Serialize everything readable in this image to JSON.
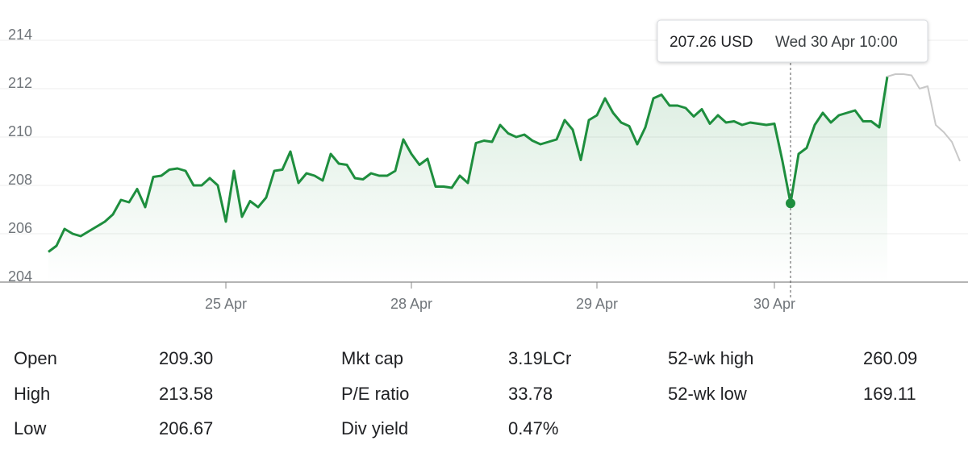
{
  "chart_data": {
    "type": "line",
    "categories": [
      null,
      null,
      null,
      null,
      null,
      null,
      null,
      null,
      null,
      null,
      null,
      null,
      null,
      null,
      null,
      null,
      null,
      null,
      null,
      null,
      null,
      null,
      "25 Apr",
      null,
      null,
      null,
      null,
      null,
      null,
      null,
      null,
      null,
      null,
      null,
      null,
      null,
      null,
      null,
      null,
      null,
      null,
      null,
      null,
      null,
      null,
      "28 Apr",
      null,
      null,
      null,
      null,
      null,
      null,
      null,
      null,
      null,
      null,
      null,
      null,
      null,
      null,
      null,
      null,
      null,
      null,
      null,
      null,
      null,
      null,
      "29 Apr",
      null,
      null,
      null,
      null,
      null,
      null,
      null,
      null,
      null,
      null,
      null,
      null,
      null,
      null,
      null,
      null,
      null,
      null,
      null,
      null,
      null,
      "30 Apr",
      null,
      null,
      null,
      null,
      null,
      null,
      null,
      null,
      null,
      null,
      null,
      null,
      null,
      null,
      null,
      null,
      null,
      null,
      null,
      null,
      null,
      null,
      null
    ],
    "series": [
      {
        "color": "#1e8e3e",
        "values": [
          205.25,
          205.5,
          206.2,
          206.0,
          205.9,
          206.1,
          206.3,
          206.5,
          206.8,
          207.4,
          207.3,
          207.85,
          207.1,
          208.35,
          208.4,
          208.65,
          208.7,
          208.6,
          208.0,
          208.0,
          208.3,
          208.0,
          206.5,
          208.6,
          206.7,
          207.35,
          207.1,
          207.5,
          208.6,
          208.65,
          209.4,
          208.1,
          208.5,
          208.4,
          208.2,
          209.3,
          208.9,
          208.85,
          208.3,
          208.25,
          208.5,
          208.4,
          208.4,
          208.6,
          209.9,
          209.3,
          208.85,
          209.1,
          207.95,
          207.95,
          207.9,
          208.4,
          208.1,
          209.75,
          209.85,
          209.8,
          210.5,
          210.15,
          210.0,
          210.1,
          209.85,
          209.7,
          209.8,
          209.9,
          210.7,
          210.3,
          209.05,
          210.7,
          210.9,
          211.6,
          211.0,
          210.6,
          210.45,
          209.7,
          210.4,
          211.6,
          211.75,
          211.3,
          211.3,
          211.2,
          210.85,
          211.15,
          210.55,
          210.9,
          210.6,
          210.65,
          210.5,
          210.6,
          210.55,
          210.5,
          210.55,
          209.0,
          207.26,
          209.3,
          209.55,
          210.5,
          211.0,
          210.6,
          210.9,
          211.0,
          211.1,
          210.65,
          210.65,
          210.4,
          212.5,
          null,
          null,
          null,
          null,
          null,
          null,
          null,
          null,
          null
        ]
      },
      {
        "color": "#c8c8c8",
        "values": [
          null,
          null,
          null,
          null,
          null,
          null,
          null,
          null,
          null,
          null,
          null,
          null,
          null,
          null,
          null,
          null,
          null,
          null,
          null,
          null,
          null,
          null,
          null,
          null,
          null,
          null,
          null,
          null,
          null,
          null,
          null,
          null,
          null,
          null,
          null,
          null,
          null,
          null,
          null,
          null,
          null,
          null,
          null,
          null,
          null,
          null,
          null,
          null,
          null,
          null,
          null,
          null,
          null,
          null,
          null,
          null,
          null,
          null,
          null,
          null,
          null,
          null,
          null,
          null,
          null,
          null,
          null,
          null,
          null,
          null,
          null,
          null,
          null,
          null,
          null,
          null,
          null,
          null,
          null,
          null,
          null,
          null,
          null,
          null,
          null,
          null,
          null,
          null,
          null,
          null,
          null,
          null,
          null,
          null,
          null,
          null,
          null,
          null,
          null,
          null,
          null,
          null,
          null,
          null,
          212.5,
          212.6,
          212.6,
          212.55,
          212.0,
          212.1,
          210.5,
          210.2,
          209.8,
          209.0
        ]
      }
    ],
    "ylim": [
      204,
      214
    ],
    "yticks": [
      204,
      206,
      208,
      210,
      212,
      214
    ],
    "grid": true,
    "highlight_index": 92,
    "tooltip": {
      "value": "207.26 USD",
      "time": "Wed 30 Apr 10:00"
    }
  },
  "stats": [
    [
      [
        "Open",
        "209.30"
      ],
      [
        "Mkt cap",
        "3.19LCr"
      ],
      [
        "52-wk high",
        "260.09"
      ]
    ],
    [
      [
        "High",
        "213.58"
      ],
      [
        "P/E ratio",
        "33.78"
      ],
      [
        "52-wk low",
        "169.11"
      ]
    ],
    [
      [
        "Low",
        "206.67"
      ],
      [
        "Div yield",
        "0.47%"
      ]
    ]
  ]
}
